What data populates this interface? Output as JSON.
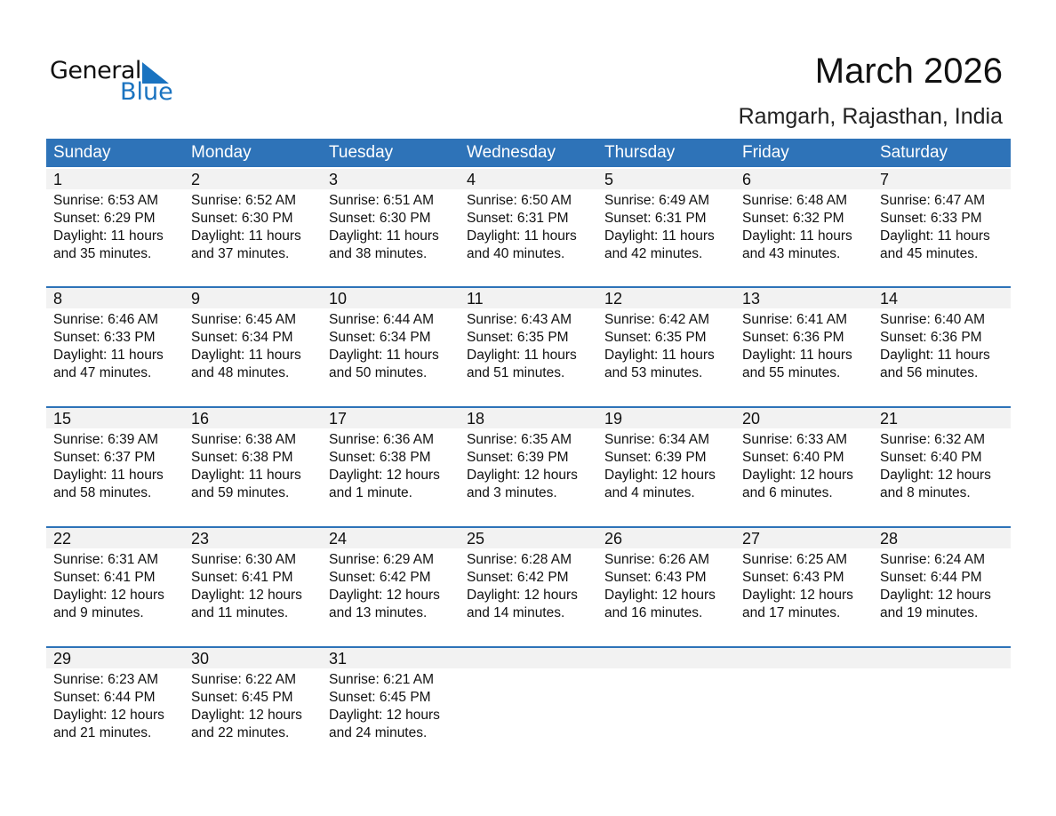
{
  "logo": {
    "text1": "General",
    "text2": "Blue",
    "color": "#1a73c0"
  },
  "title": "March 2026",
  "subtitle": "Ramgarh, Rajasthan, India",
  "accent": "#2e73b8",
  "weekdays": [
    "Sunday",
    "Monday",
    "Tuesday",
    "Wednesday",
    "Thursday",
    "Friday",
    "Saturday"
  ],
  "weeks": [
    [
      {
        "d": "1",
        "sr": "Sunrise: 6:53 AM",
        "ss": "Sunset: 6:29 PM",
        "dl1": "Daylight: 11 hours",
        "dl2": "and 35 minutes."
      },
      {
        "d": "2",
        "sr": "Sunrise: 6:52 AM",
        "ss": "Sunset: 6:30 PM",
        "dl1": "Daylight: 11 hours",
        "dl2": "and 37 minutes."
      },
      {
        "d": "3",
        "sr": "Sunrise: 6:51 AM",
        "ss": "Sunset: 6:30 PM",
        "dl1": "Daylight: 11 hours",
        "dl2": "and 38 minutes."
      },
      {
        "d": "4",
        "sr": "Sunrise: 6:50 AM",
        "ss": "Sunset: 6:31 PM",
        "dl1": "Daylight: 11 hours",
        "dl2": "and 40 minutes."
      },
      {
        "d": "5",
        "sr": "Sunrise: 6:49 AM",
        "ss": "Sunset: 6:31 PM",
        "dl1": "Daylight: 11 hours",
        "dl2": "and 42 minutes."
      },
      {
        "d": "6",
        "sr": "Sunrise: 6:48 AM",
        "ss": "Sunset: 6:32 PM",
        "dl1": "Daylight: 11 hours",
        "dl2": "and 43 minutes."
      },
      {
        "d": "7",
        "sr": "Sunrise: 6:47 AM",
        "ss": "Sunset: 6:33 PM",
        "dl1": "Daylight: 11 hours",
        "dl2": "and 45 minutes."
      }
    ],
    [
      {
        "d": "8",
        "sr": "Sunrise: 6:46 AM",
        "ss": "Sunset: 6:33 PM",
        "dl1": "Daylight: 11 hours",
        "dl2": "and 47 minutes."
      },
      {
        "d": "9",
        "sr": "Sunrise: 6:45 AM",
        "ss": "Sunset: 6:34 PM",
        "dl1": "Daylight: 11 hours",
        "dl2": "and 48 minutes."
      },
      {
        "d": "10",
        "sr": "Sunrise: 6:44 AM",
        "ss": "Sunset: 6:34 PM",
        "dl1": "Daylight: 11 hours",
        "dl2": "and 50 minutes."
      },
      {
        "d": "11",
        "sr": "Sunrise: 6:43 AM",
        "ss": "Sunset: 6:35 PM",
        "dl1": "Daylight: 11 hours",
        "dl2": "and 51 minutes."
      },
      {
        "d": "12",
        "sr": "Sunrise: 6:42 AM",
        "ss": "Sunset: 6:35 PM",
        "dl1": "Daylight: 11 hours",
        "dl2": "and 53 minutes."
      },
      {
        "d": "13",
        "sr": "Sunrise: 6:41 AM",
        "ss": "Sunset: 6:36 PM",
        "dl1": "Daylight: 11 hours",
        "dl2": "and 55 minutes."
      },
      {
        "d": "14",
        "sr": "Sunrise: 6:40 AM",
        "ss": "Sunset: 6:36 PM",
        "dl1": "Daylight: 11 hours",
        "dl2": "and 56 minutes."
      }
    ],
    [
      {
        "d": "15",
        "sr": "Sunrise: 6:39 AM",
        "ss": "Sunset: 6:37 PM",
        "dl1": "Daylight: 11 hours",
        "dl2": "and 58 minutes."
      },
      {
        "d": "16",
        "sr": "Sunrise: 6:38 AM",
        "ss": "Sunset: 6:38 PM",
        "dl1": "Daylight: 11 hours",
        "dl2": "and 59 minutes."
      },
      {
        "d": "17",
        "sr": "Sunrise: 6:36 AM",
        "ss": "Sunset: 6:38 PM",
        "dl1": "Daylight: 12 hours",
        "dl2": "and 1 minute."
      },
      {
        "d": "18",
        "sr": "Sunrise: 6:35 AM",
        "ss": "Sunset: 6:39 PM",
        "dl1": "Daylight: 12 hours",
        "dl2": "and 3 minutes."
      },
      {
        "d": "19",
        "sr": "Sunrise: 6:34 AM",
        "ss": "Sunset: 6:39 PM",
        "dl1": "Daylight: 12 hours",
        "dl2": "and 4 minutes."
      },
      {
        "d": "20",
        "sr": "Sunrise: 6:33 AM",
        "ss": "Sunset: 6:40 PM",
        "dl1": "Daylight: 12 hours",
        "dl2": "and 6 minutes."
      },
      {
        "d": "21",
        "sr": "Sunrise: 6:32 AM",
        "ss": "Sunset: 6:40 PM",
        "dl1": "Daylight: 12 hours",
        "dl2": "and 8 minutes."
      }
    ],
    [
      {
        "d": "22",
        "sr": "Sunrise: 6:31 AM",
        "ss": "Sunset: 6:41 PM",
        "dl1": "Daylight: 12 hours",
        "dl2": "and 9 minutes."
      },
      {
        "d": "23",
        "sr": "Sunrise: 6:30 AM",
        "ss": "Sunset: 6:41 PM",
        "dl1": "Daylight: 12 hours",
        "dl2": "and 11 minutes."
      },
      {
        "d": "24",
        "sr": "Sunrise: 6:29 AM",
        "ss": "Sunset: 6:42 PM",
        "dl1": "Daylight: 12 hours",
        "dl2": "and 13 minutes."
      },
      {
        "d": "25",
        "sr": "Sunrise: 6:28 AM",
        "ss": "Sunset: 6:42 PM",
        "dl1": "Daylight: 12 hours",
        "dl2": "and 14 minutes."
      },
      {
        "d": "26",
        "sr": "Sunrise: 6:26 AM",
        "ss": "Sunset: 6:43 PM",
        "dl1": "Daylight: 12 hours",
        "dl2": "and 16 minutes."
      },
      {
        "d": "27",
        "sr": "Sunrise: 6:25 AM",
        "ss": "Sunset: 6:43 PM",
        "dl1": "Daylight: 12 hours",
        "dl2": "and 17 minutes."
      },
      {
        "d": "28",
        "sr": "Sunrise: 6:24 AM",
        "ss": "Sunset: 6:44 PM",
        "dl1": "Daylight: 12 hours",
        "dl2": "and 19 minutes."
      }
    ],
    [
      {
        "d": "29",
        "sr": "Sunrise: 6:23 AM",
        "ss": "Sunset: 6:44 PM",
        "dl1": "Daylight: 12 hours",
        "dl2": "and 21 minutes."
      },
      {
        "d": "30",
        "sr": "Sunrise: 6:22 AM",
        "ss": "Sunset: 6:45 PM",
        "dl1": "Daylight: 12 hours",
        "dl2": "and 22 minutes."
      },
      {
        "d": "31",
        "sr": "Sunrise: 6:21 AM",
        "ss": "Sunset: 6:45 PM",
        "dl1": "Daylight: 12 hours",
        "dl2": "and 24 minutes."
      }
    ]
  ]
}
